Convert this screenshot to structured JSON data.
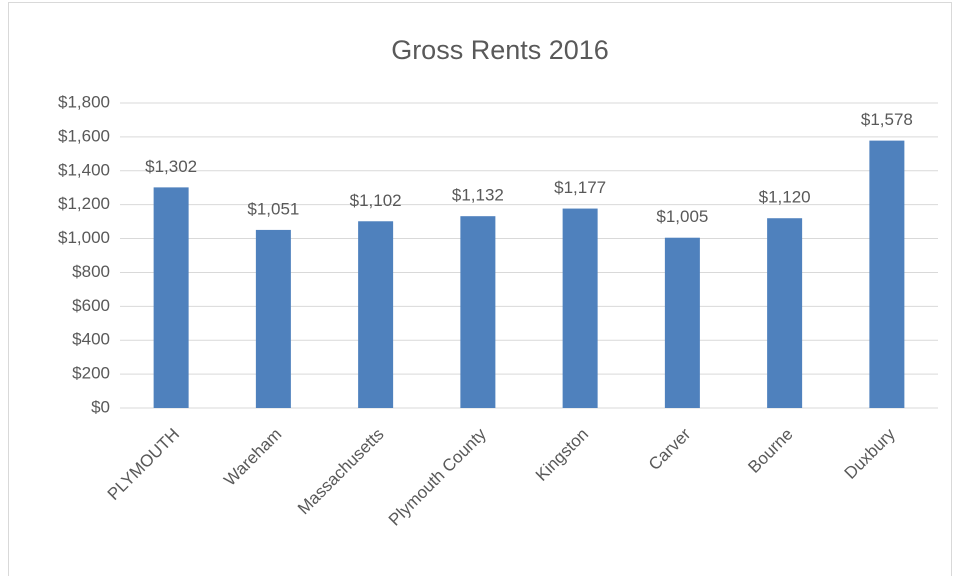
{
  "chart_data": {
    "type": "bar",
    "title": "Gross Rents 2016",
    "categories": [
      "PLYMOUTH",
      "Wareham",
      "Massachusetts",
      "Plymouth County",
      "Kingston",
      "Carver",
      "Bourne",
      "Duxbury"
    ],
    "values": [
      1302,
      1051,
      1102,
      1132,
      1177,
      1005,
      1120,
      1578
    ],
    "value_labels": [
      "$1,302",
      "$1,051",
      "$1,102",
      "$1,132",
      "$1,177",
      "$1,005",
      "$1,120",
      "$1,578"
    ],
    "color": "#4f81bd",
    "ylim": [
      0,
      1800
    ],
    "yticks": [
      {
        "value": 0,
        "label": "$0"
      },
      {
        "value": 200,
        "label": "$200"
      },
      {
        "value": 400,
        "label": "$400"
      },
      {
        "value": 600,
        "label": "$600"
      },
      {
        "value": 800,
        "label": "$800"
      },
      {
        "value": 1000,
        "label": "$1,000"
      },
      {
        "value": 1200,
        "label": "$1,200"
      },
      {
        "value": 1400,
        "label": "$1,400"
      },
      {
        "value": 1600,
        "label": "$1,600"
      },
      {
        "value": 1800,
        "label": "$1,800"
      }
    ],
    "grid": true
  }
}
